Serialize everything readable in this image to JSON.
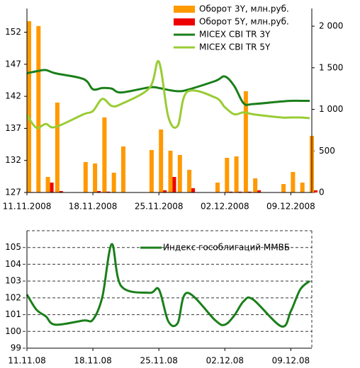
{
  "chart_data": [
    {
      "type": "combo",
      "x": [
        "11.11.2008",
        "12.11.2008",
        "13.11.2008",
        "14.11.2008",
        "17.11.2008",
        "18.11.2008",
        "19.11.2008",
        "20.11.2008",
        "21.11.2008",
        "24.11.2008",
        "25.11.2008",
        "26.11.2008",
        "27.11.2008",
        "28.11.2008",
        "01.12.2008",
        "02.12.2008",
        "03.12.2008",
        "04.12.2008",
        "05.12.2008",
        "08.12.2008",
        "09.12.2008",
        "10.12.2008",
        "11.12.2008"
      ],
      "series": [
        {
          "name": "Оборот 3Y, млн.руб.",
          "kind": "bar",
          "axis": "y2",
          "color": "#ff9900",
          "values": [
            2061,
            2002,
            187,
            1082,
            366,
            349,
            903,
            238,
            554,
            511,
            758,
            503,
            451,
            273,
            119,
            417,
            434,
            1218,
            170,
            102,
            247,
            119,
            681
          ]
        },
        {
          "name": "Оборот 5Y, млн.руб.",
          "kind": "bar",
          "axis": "y2",
          "color": "#ee0000",
          "values": [
            5,
            5,
            119,
            17,
            0,
            17,
            10,
            0,
            0,
            5,
            26,
            187,
            0,
            51,
            0,
            10,
            10,
            10,
            26,
            0,
            0,
            0,
            26
          ]
        },
        {
          "name": "MICEX CBI TR 3Y",
          "kind": "line",
          "color": "#1a7f1a",
          "values": [
            145.6,
            145.9,
            146.1,
            145.6,
            144.7,
            143.1,
            143.3,
            143.2,
            142.6,
            143.4,
            143.3,
            143.0,
            142.8,
            143.0,
            144.4,
            145.1,
            143.6,
            140.9,
            140.8,
            141.2,
            141.3,
            141.3,
            141.3
          ]
        },
        {
          "name": "MICEX CBI TR 5Y",
          "kind": "line",
          "color": "#99cc33",
          "values": [
            139.1,
            137.1,
            137.7,
            137.2,
            139.2,
            139.7,
            141.6,
            140.5,
            140.8,
            143.3,
            147.4,
            138.8,
            137.4,
            142.7,
            141.8,
            140.3,
            139.2,
            139.5,
            139.2,
            138.7,
            138.7,
            138.7,
            138.6
          ]
        }
      ],
      "ylim": [
        127,
        155.7
      ],
      "yticks": [
        127,
        132,
        137,
        142,
        147,
        152
      ],
      "y2lim": [
        0,
        2213
      ],
      "y2ticks": [
        0,
        500,
        {
          "value": 1000,
          "label": "1 000"
        },
        {
          "value": 1500,
          "label": "1 500"
        },
        {
          "value": 2000,
          "label": "2 000"
        }
      ],
      "xticks": [
        "11.11.2008",
        "18.11.2008",
        "25.11.2008",
        "02.12.2008",
        "09.12.2008"
      ],
      "legend": "upper right"
    },
    {
      "type": "line",
      "x": [
        "11.11.08",
        "12.11.08",
        "13.11.08",
        "14.11.08",
        "17.11.08",
        "18.11.08",
        "19.11.08",
        "20.11.08",
        "21.11.08",
        "24.11.08",
        "25.11.08",
        "26.11.08",
        "27.11.08",
        "28.11.08",
        "01.12.08",
        "02.12.08",
        "03.12.08",
        "04.12.08",
        "05.12.08",
        "08.12.08",
        "09.12.08",
        "10.12.08",
        "11.12.08"
      ],
      "series": [
        {
          "name": "Индекс гособлигаций ММВБ",
          "color": "#1a7f1a",
          "values": [
            102.2,
            101.3,
            100.9,
            100.4,
            100.65,
            100.7,
            102.05,
            105.2,
            102.7,
            102.3,
            102.5,
            100.6,
            100.5,
            102.3,
            100.65,
            100.4,
            100.95,
            101.8,
            101.9,
            100.3,
            101.2,
            102.5,
            103.0
          ]
        }
      ],
      "ylim": [
        99,
        106
      ],
      "yticks": [
        99,
        100,
        101,
        102,
        103,
        104,
        105
      ],
      "xticks": [
        "11.11.08",
        "18.11.08",
        "25.11.08",
        "02.12.08",
        "09.12.08"
      ],
      "grid": true,
      "legend": "upper center"
    }
  ]
}
